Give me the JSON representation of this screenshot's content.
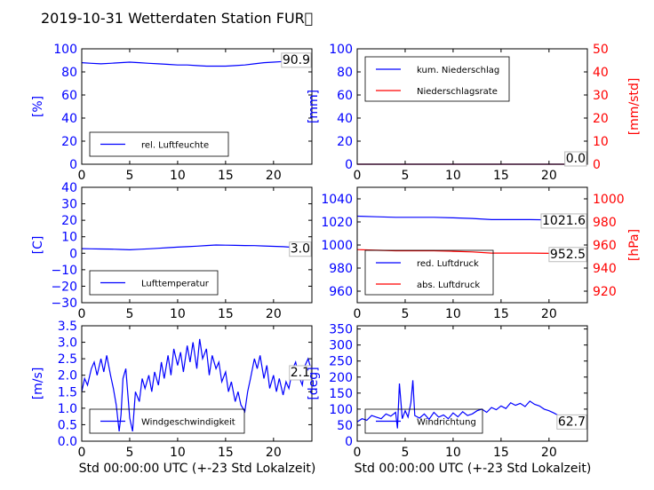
{
  "title": "2019-10-31 Wetterdaten Station FUR\u0000",
  "x_label": "Std 00:00:00 UTC (+-23 Std Lokalzeit)",
  "colors": {
    "primary_axis": "#0000ff",
    "secondary_axis": "#ff0000",
    "frame": "#000000"
  },
  "chart_data": [
    {
      "id": "humidity",
      "type": "line",
      "xlim": [
        0,
        24
      ],
      "ylim": [
        0,
        100
      ],
      "xticks": [
        0,
        5,
        10,
        15,
        20
      ],
      "yticks": [
        0,
        20,
        40,
        60,
        80,
        100
      ],
      "ylabel": "[%]",
      "legend_loc": "lower-left",
      "last_value": "90.9",
      "series": [
        {
          "name": "rel. Luftfeuchte",
          "color": "#0000ff",
          "x": [
            0,
            1,
            2,
            3,
            4,
            5,
            6,
            7,
            8,
            9,
            10,
            11,
            12,
            13,
            14,
            15,
            16,
            17,
            18,
            19,
            20,
            21,
            22,
            23,
            24
          ],
          "y": [
            88,
            87.5,
            87,
            87.5,
            88,
            88.5,
            88,
            87.5,
            87,
            86.5,
            86,
            86,
            85.5,
            85,
            85,
            85,
            85.5,
            86,
            87,
            88,
            88.5,
            89,
            90,
            90.5,
            90.9
          ]
        }
      ]
    },
    {
      "id": "precipitation",
      "type": "line",
      "xlim": [
        0,
        24
      ],
      "ylim": [
        0,
        100
      ],
      "ylim_right": [
        0,
        50
      ],
      "xticks": [
        0,
        5,
        10,
        15,
        20
      ],
      "yticks": [
        0,
        20,
        40,
        60,
        80,
        100
      ],
      "yticks_right": [
        0,
        10,
        20,
        30,
        40,
        50
      ],
      "ylabel": "[mm]",
      "ylabel_right": "[mm/std]",
      "legend_loc": "upper-left",
      "last_value": "0.0",
      "last_value_right": "0.0",
      "series": [
        {
          "name": "kum. Niederschlag",
          "color": "#0000ff",
          "axis": "left",
          "x": [
            0,
            24
          ],
          "y": [
            0,
            0
          ]
        },
        {
          "name": "Niederschlagsrate",
          "color": "#ff0000",
          "axis": "right",
          "x": [
            0,
            24
          ],
          "y": [
            0,
            0
          ]
        }
      ]
    },
    {
      "id": "temperature",
      "type": "line",
      "xlim": [
        0,
        24
      ],
      "ylim": [
        -30,
        40
      ],
      "xticks": [
        0,
        5,
        10,
        15,
        20
      ],
      "yticks": [
        -30,
        -20,
        -10,
        0,
        10,
        20,
        30,
        40
      ],
      "ylabel": "[C]",
      "legend_loc": "lower-left",
      "last_value": "3.0",
      "series": [
        {
          "name": "Lufttemperatur",
          "color": "#0000ff",
          "x": [
            0,
            1,
            2,
            3,
            4,
            5,
            6,
            7,
            8,
            9,
            10,
            11,
            12,
            13,
            14,
            15,
            16,
            17,
            18,
            19,
            20,
            21,
            22,
            23,
            24
          ],
          "y": [
            2.8,
            2.7,
            2.6,
            2.5,
            2.3,
            2.1,
            2.4,
            2.7,
            3.0,
            3.4,
            3.7,
            4.0,
            4.3,
            4.7,
            5.0,
            4.9,
            4.8,
            4.7,
            4.6,
            4.4,
            4.2,
            4.0,
            3.6,
            3.2,
            3.0
          ]
        }
      ]
    },
    {
      "id": "pressure",
      "type": "line",
      "xlim": [
        0,
        24
      ],
      "ylim": [
        950,
        1050
      ],
      "ylim_right": [
        910,
        1010
      ],
      "xticks": [
        0,
        5,
        10,
        15,
        20
      ],
      "yticks": [
        960,
        980,
        1000,
        1020,
        1040
      ],
      "yticks_right": [
        920,
        940,
        960,
        980,
        1000
      ],
      "ylabel_right": "[hPa]",
      "legend_loc": "lower-left",
      "last_value": "1021.6",
      "last_value_right": "952.5",
      "series": [
        {
          "name": "red. Luftdruck",
          "color": "#0000ff",
          "axis": "left",
          "x": [
            0,
            2,
            4,
            6,
            8,
            10,
            12,
            14,
            16,
            18,
            20,
            22,
            24
          ],
          "y": [
            1025,
            1024.5,
            1024,
            1024,
            1024,
            1023.5,
            1023,
            1022,
            1022,
            1022,
            1021.8,
            1021.7,
            1021.6
          ]
        },
        {
          "name": "abs. Luftdruck",
          "color": "#ff0000",
          "axis": "right",
          "x": [
            0,
            2,
            4,
            6,
            8,
            10,
            12,
            14,
            16,
            18,
            20,
            22,
            24
          ],
          "y": [
            956,
            955.5,
            955,
            955,
            955,
            954.5,
            954,
            953,
            953,
            953,
            952.8,
            952.6,
            952.5
          ]
        }
      ]
    },
    {
      "id": "windspeed",
      "type": "line",
      "xlim": [
        0,
        24
      ],
      "ylim": [
        0,
        3.5
      ],
      "xticks": [
        0,
        5,
        10,
        15,
        20
      ],
      "yticks": [
        0.0,
        0.5,
        1.0,
        1.5,
        2.0,
        2.5,
        3.0,
        3.5
      ],
      "ytick_labels": [
        "0.0",
        "0.5",
        "1.0",
        "1.5",
        "2.0",
        "2.5",
        "3.0",
        "3.5"
      ],
      "ylabel": "[m/s]",
      "legend_loc": "lower-left",
      "last_value": "2.1",
      "series": [
        {
          "name": "Windgeschwindigkeit",
          "color": "#0000ff",
          "x": [
            0,
            0.3,
            0.6,
            1,
            1.3,
            1.6,
            2,
            2.3,
            2.6,
            3,
            3.3,
            3.6,
            3.9,
            4.1,
            4.3,
            4.6,
            5,
            5.3,
            5.6,
            6,
            6.3,
            6.6,
            7,
            7.3,
            7.6,
            8,
            8.3,
            8.6,
            9,
            9.3,
            9.6,
            10,
            10.3,
            10.6,
            11,
            11.3,
            11.6,
            12,
            12.3,
            12.6,
            13,
            13.3,
            13.6,
            14,
            14.3,
            14.6,
            15,
            15.3,
            15.6,
            16,
            16.3,
            16.6,
            17,
            17.3,
            17.6,
            18,
            18.3,
            18.6,
            19,
            19.3,
            19.6,
            20,
            20.3,
            20.6,
            21,
            21.3,
            21.6,
            22,
            22.3,
            22.6,
            23,
            23.3,
            23.6,
            24
          ],
          "y": [
            1.5,
            1.9,
            1.7,
            2.2,
            2.4,
            2.0,
            2.5,
            2.1,
            2.6,
            2.0,
            1.6,
            1.1,
            0.3,
            0.8,
            1.9,
            2.2,
            0.7,
            0.3,
            1.5,
            1.2,
            1.9,
            1.6,
            2.0,
            1.5,
            2.1,
            1.7,
            2.4,
            1.9,
            2.6,
            2.0,
            2.8,
            2.3,
            2.7,
            2.1,
            2.9,
            2.4,
            3.0,
            2.2,
            3.1,
            2.5,
            2.8,
            2.0,
            2.6,
            2.2,
            2.4,
            1.8,
            2.1,
            1.5,
            1.8,
            1.2,
            1.5,
            1.1,
            0.9,
            1.5,
            1.9,
            2.5,
            2.2,
            2.6,
            1.9,
            2.3,
            1.6,
            2.0,
            1.5,
            1.9,
            1.4,
            1.8,
            1.6,
            2.2,
            2.4,
            2.0,
            1.7,
            2.3,
            2.5,
            2.1
          ]
        }
      ]
    },
    {
      "id": "winddirection",
      "type": "line",
      "xlim": [
        0,
        24
      ],
      "ylim": [
        0,
        360
      ],
      "xticks": [
        0,
        5,
        10,
        15,
        20
      ],
      "yticks": [
        0,
        50,
        100,
        150,
        200,
        250,
        300,
        350
      ],
      "ylabel": "[deg]",
      "legend_loc": "lower-left",
      "last_value": "62.7",
      "series": [
        {
          "name": "Windrichtung",
          "color": "#0000ff",
          "x": [
            0,
            0.5,
            1,
            1.5,
            2,
            2.5,
            3,
            3.5,
            4,
            4.2,
            4.4,
            4.7,
            5,
            5.3,
            5.6,
            5.8,
            6,
            6.5,
            7,
            7.5,
            8,
            8.5,
            9,
            9.5,
            10,
            10.5,
            11,
            11.5,
            12,
            12.5,
            13,
            13.5,
            14,
            14.5,
            15,
            15.5,
            16,
            16.5,
            17,
            17.5,
            18,
            18.5,
            19,
            19.5,
            20,
            20.5,
            21,
            21.5,
            22,
            22.5,
            23,
            23.5,
            24
          ],
          "y": [
            60,
            70,
            65,
            80,
            75,
            70,
            85,
            78,
            90,
            40,
            180,
            70,
            95,
            75,
            120,
            190,
            80,
            72,
            85,
            68,
            90,
            75,
            82,
            70,
            88,
            76,
            92,
            80,
            85,
            95,
            100,
            90,
            105,
            98,
            110,
            102,
            120,
            112,
            118,
            108,
            125,
            115,
            110,
            100,
            95,
            88,
            80,
            72,
            70,
            66,
            64,
            60,
            62.7
          ]
        }
      ]
    }
  ]
}
